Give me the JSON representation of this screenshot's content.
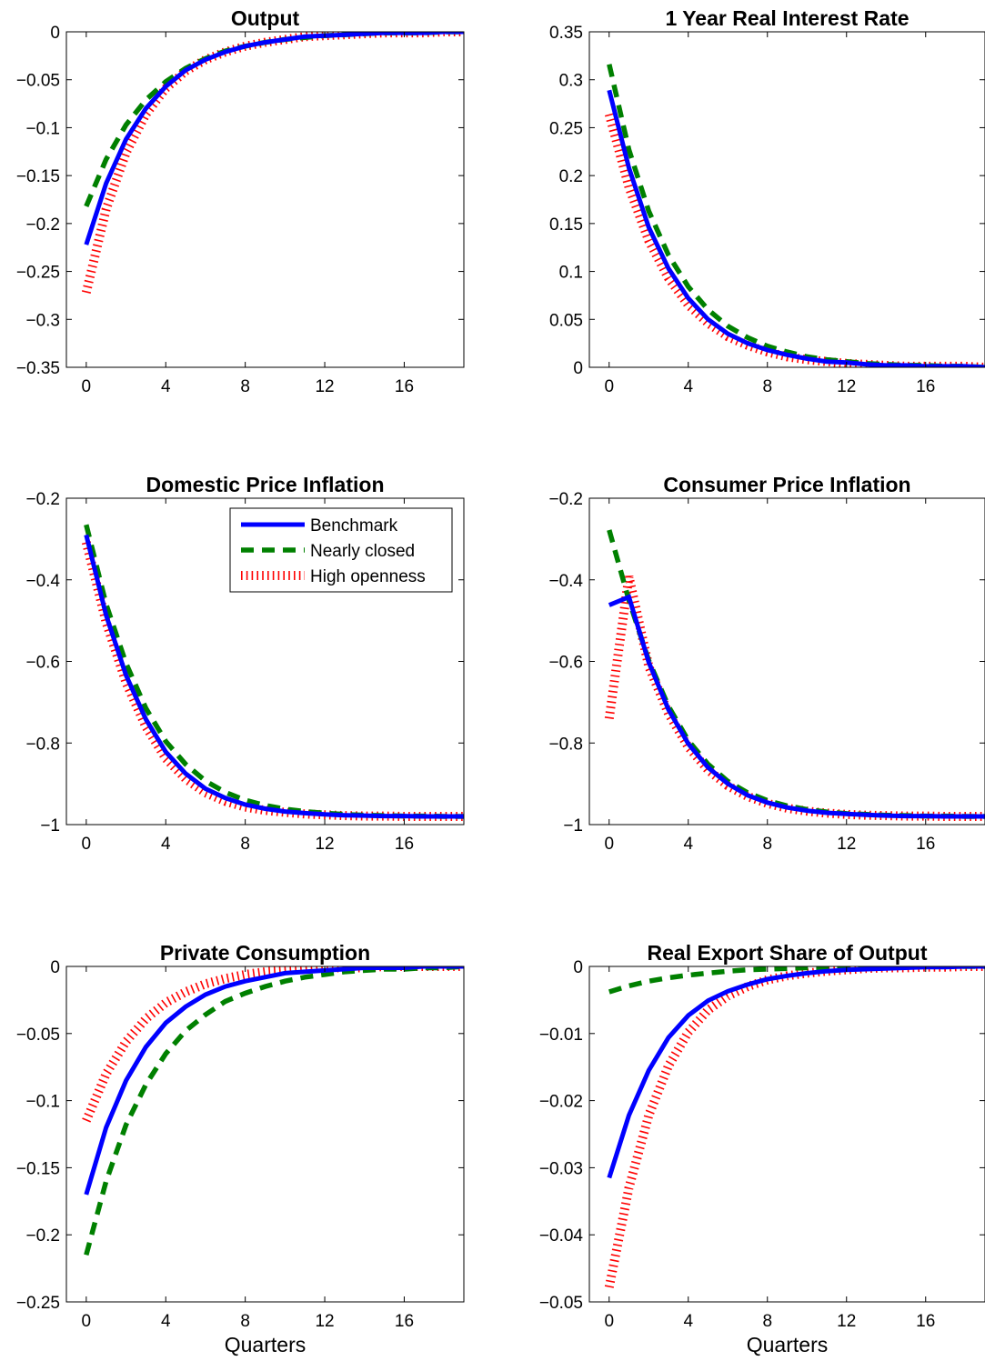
{
  "figure": {
    "legend": {
      "entries": [
        "Benchmark",
        "Nearly closed",
        "High openness"
      ],
      "placement": "upper-right of Domestic Price Inflation panel"
    },
    "series_styles": [
      {
        "name": "Benchmark",
        "color": "#0000ff",
        "line": "solid"
      },
      {
        "name": "Nearly closed",
        "color": "#008000",
        "line": "dashed"
      },
      {
        "name": "High openness",
        "color": "#ff0000",
        "line": "dotted"
      }
    ]
  },
  "chart_data": [
    {
      "type": "line",
      "title": "Output",
      "xlabel": "",
      "ylabel": "",
      "xlim": [
        -1,
        19
      ],
      "ylim": [
        -0.35,
        0
      ],
      "xticks": [
        0,
        4,
        8,
        12,
        16
      ],
      "yticks": [
        0,
        -0.05,
        -0.1,
        -0.15,
        -0.2,
        -0.25,
        -0.3,
        -0.35
      ],
      "ytick_labels": [
        "0",
        "−0.05",
        "−0.1",
        "−0.15",
        "−0.2",
        "−0.25",
        "−0.3",
        "−0.35"
      ],
      "x": [
        0,
        1,
        2,
        3,
        4,
        5,
        6,
        7,
        8,
        9,
        10,
        11,
        12,
        13,
        14,
        15,
        16,
        17,
        18,
        19
      ],
      "series": [
        {
          "name": "Benchmark",
          "values": [
            -0.222,
            -0.158,
            -0.112,
            -0.08,
            -0.057,
            -0.04,
            -0.029,
            -0.021,
            -0.015,
            -0.011,
            -0.008,
            -0.005,
            -0.004,
            -0.003,
            -0.002,
            -0.001,
            -0.001,
            -0.001,
            0,
            0
          ]
        },
        {
          "name": "Nearly closed",
          "values": [
            -0.182,
            -0.133,
            -0.097,
            -0.071,
            -0.052,
            -0.038,
            -0.028,
            -0.02,
            -0.015,
            -0.011,
            -0.008,
            -0.006,
            -0.004,
            -0.003,
            -0.002,
            -0.001,
            -0.001,
            -0.001,
            0,
            0
          ]
        },
        {
          "name": "High openness",
          "values": [
            -0.272,
            -0.185,
            -0.126,
            -0.086,
            -0.059,
            -0.041,
            -0.029,
            -0.021,
            -0.015,
            -0.011,
            -0.008,
            -0.005,
            -0.004,
            -0.003,
            -0.002,
            -0.001,
            -0.001,
            -0.001,
            0,
            0
          ]
        }
      ]
    },
    {
      "type": "line",
      "title": "1 Year Real Interest Rate",
      "xlabel": "",
      "ylabel": "",
      "xlim": [
        -1,
        19
      ],
      "ylim": [
        0,
        0.35
      ],
      "xticks": [
        0,
        4,
        8,
        12,
        16
      ],
      "yticks": [
        0.35,
        0.3,
        0.25,
        0.2,
        0.15,
        0.1,
        0.05,
        0
      ],
      "ytick_labels": [
        "0.35",
        "0.3",
        "0.25",
        "0.2",
        "0.15",
        "0.1",
        "0.05",
        "0"
      ],
      "x": [
        0,
        1,
        2,
        3,
        4,
        5,
        6,
        7,
        8,
        9,
        10,
        11,
        12,
        13,
        14,
        15,
        16,
        17,
        18,
        19
      ],
      "series": [
        {
          "name": "Benchmark",
          "values": [
            0.289,
            0.208,
            0.146,
            0.103,
            0.072,
            0.05,
            0.035,
            0.025,
            0.018,
            0.013,
            0.009,
            0.006,
            0.005,
            0.003,
            0.002,
            0.002,
            0.001,
            0.001,
            0.001,
            0
          ]
        },
        {
          "name": "Nearly closed",
          "values": [
            0.316,
            0.227,
            0.163,
            0.117,
            0.084,
            0.06,
            0.043,
            0.031,
            0.022,
            0.016,
            0.011,
            0.008,
            0.006,
            0.004,
            0.003,
            0.002,
            0.002,
            0.001,
            0.001,
            0
          ]
        },
        {
          "name": "High openness",
          "values": [
            0.264,
            0.188,
            0.132,
            0.093,
            0.065,
            0.046,
            0.032,
            0.023,
            0.016,
            0.011,
            0.008,
            0.006,
            0.004,
            0.003,
            0.002,
            0.001,
            0.001,
            0.001,
            0.001,
            0
          ]
        }
      ]
    },
    {
      "type": "line",
      "title": "Domestic Price Inflation",
      "xlabel": "",
      "ylabel": "",
      "xlim": [
        -1,
        19
      ],
      "ylim": [
        -1,
        -0.2
      ],
      "xticks": [
        0,
        4,
        8,
        12,
        16
      ],
      "yticks": [
        -0.2,
        -0.4,
        -0.6,
        -0.8,
        -1
      ],
      "ytick_labels": [
        "−0.2",
        "−0.4",
        "−0.6",
        "−0.8",
        "−1"
      ],
      "x": [
        0,
        1,
        2,
        3,
        4,
        5,
        6,
        7,
        8,
        9,
        10,
        11,
        12,
        13,
        14,
        15,
        16,
        17,
        18,
        19
      ],
      "series": [
        {
          "name": "Benchmark",
          "values": [
            -0.29,
            -0.487,
            -0.634,
            -0.742,
            -0.822,
            -0.875,
            -0.912,
            -0.935,
            -0.951,
            -0.961,
            -0.968,
            -0.972,
            -0.975,
            -0.977,
            -0.978,
            -0.979,
            -0.979,
            -0.98,
            -0.98,
            -0.98
          ]
        },
        {
          "name": "Nearly closed",
          "values": [
            -0.265,
            -0.46,
            -0.605,
            -0.715,
            -0.796,
            -0.852,
            -0.893,
            -0.921,
            -0.94,
            -0.953,
            -0.962,
            -0.968,
            -0.972,
            -0.975,
            -0.977,
            -0.978,
            -0.979,
            -0.979,
            -0.98,
            -0.98
          ]
        },
        {
          "name": "High openness",
          "values": [
            -0.308,
            -0.504,
            -0.652,
            -0.76,
            -0.838,
            -0.888,
            -0.922,
            -0.943,
            -0.957,
            -0.965,
            -0.97,
            -0.974,
            -0.976,
            -0.978,
            -0.979,
            -0.979,
            -0.98,
            -0.98,
            -0.98,
            -0.98
          ]
        }
      ]
    },
    {
      "type": "line",
      "title": "Consumer Price Inflation",
      "xlabel": "",
      "ylabel": "",
      "xlim": [
        -1,
        19
      ],
      "ylim": [
        -1,
        -0.2
      ],
      "xticks": [
        0,
        4,
        8,
        12,
        16
      ],
      "yticks": [
        -0.2,
        -0.4,
        -0.6,
        -0.8,
        -1
      ],
      "ytick_labels": [
        "−0.2",
        "−0.4",
        "−0.6",
        "−0.8",
        "−1"
      ],
      "x": [
        0,
        1,
        2,
        3,
        4,
        5,
        6,
        7,
        8,
        9,
        10,
        11,
        12,
        13,
        14,
        15,
        16,
        17,
        18,
        19
      ],
      "series": [
        {
          "name": "Benchmark",
          "values": [
            -0.462,
            -0.442,
            -0.602,
            -0.718,
            -0.802,
            -0.86,
            -0.9,
            -0.928,
            -0.946,
            -0.958,
            -0.966,
            -0.971,
            -0.974,
            -0.976,
            -0.978,
            -0.979,
            -0.979,
            -0.98,
            -0.98,
            -0.98
          ]
        },
        {
          "name": "Nearly closed",
          "values": [
            -0.278,
            -0.45,
            -0.598,
            -0.71,
            -0.794,
            -0.852,
            -0.894,
            -0.922,
            -0.941,
            -0.954,
            -0.963,
            -0.969,
            -0.973,
            -0.975,
            -0.977,
            -0.978,
            -0.979,
            -0.979,
            -0.98,
            -0.98
          ]
        },
        {
          "name": "High openness",
          "values": [
            -0.74,
            -0.392,
            -0.612,
            -0.728,
            -0.81,
            -0.866,
            -0.905,
            -0.931,
            -0.948,
            -0.96,
            -0.967,
            -0.972,
            -0.975,
            -0.977,
            -0.978,
            -0.979,
            -0.979,
            -0.98,
            -0.98,
            -0.98
          ]
        }
      ]
    },
    {
      "type": "line",
      "title": "Private Consumption",
      "xlabel": "Quarters",
      "ylabel": "",
      "xlim": [
        -1,
        19
      ],
      "ylim": [
        -0.25,
        0
      ],
      "xticks": [
        0,
        4,
        8,
        12,
        16
      ],
      "yticks": [
        0,
        -0.05,
        -0.1,
        -0.15,
        -0.2,
        -0.25
      ],
      "ytick_labels": [
        "0",
        "−0.05",
        "−0.1",
        "−0.15",
        "−0.2",
        "−0.25"
      ],
      "x": [
        0,
        1,
        2,
        3,
        4,
        5,
        6,
        7,
        8,
        9,
        10,
        11,
        12,
        13,
        14,
        15,
        16,
        17,
        18,
        19
      ],
      "series": [
        {
          "name": "Benchmark",
          "values": [
            -0.17,
            -0.12,
            -0.085,
            -0.06,
            -0.042,
            -0.03,
            -0.021,
            -0.015,
            -0.011,
            -0.008,
            -0.005,
            -0.004,
            -0.003,
            -0.002,
            -0.001,
            -0.001,
            -0.001,
            0,
            0,
            0
          ]
        },
        {
          "name": "Nearly closed",
          "values": [
            -0.215,
            -0.16,
            -0.118,
            -0.088,
            -0.065,
            -0.048,
            -0.036,
            -0.026,
            -0.02,
            -0.015,
            -0.011,
            -0.008,
            -0.006,
            -0.004,
            -0.003,
            -0.002,
            -0.002,
            -0.001,
            -0.001,
            0
          ]
        },
        {
          "name": "High openness",
          "values": [
            -0.115,
            -0.08,
            -0.056,
            -0.039,
            -0.027,
            -0.019,
            -0.013,
            -0.009,
            -0.006,
            -0.004,
            -0.003,
            -0.002,
            -0.001,
            -0.001,
            -0.001,
            0,
            0,
            0,
            0,
            0
          ]
        }
      ]
    },
    {
      "type": "line",
      "title": "Real Export Share of Output",
      "xlabel": "Quarters",
      "ylabel": "",
      "xlim": [
        -1,
        19
      ],
      "ylim": [
        -0.05,
        0
      ],
      "xticks": [
        0,
        4,
        8,
        12,
        16
      ],
      "yticks": [
        0,
        -0.01,
        -0.02,
        -0.03,
        -0.04,
        -0.05
      ],
      "ytick_labels": [
        "0",
        "−0.01",
        "−0.02",
        "−0.03",
        "−0.04",
        "−0.05"
      ],
      "x": [
        0,
        1,
        2,
        3,
        4,
        5,
        6,
        7,
        8,
        9,
        10,
        11,
        12,
        13,
        14,
        15,
        16,
        17,
        18,
        19
      ],
      "series": [
        {
          "name": "Benchmark",
          "values": [
            -0.0315,
            -0.0222,
            -0.0155,
            -0.0106,
            -0.0073,
            -0.0051,
            -0.0037,
            -0.0027,
            -0.0019,
            -0.0014,
            -0.001,
            -0.0007,
            -0.0005,
            -0.0004,
            -0.0003,
            -0.0002,
            -0.0001,
            -0.0001,
            0,
            0
          ]
        },
        {
          "name": "Nearly closed",
          "values": [
            -0.0038,
            -0.0029,
            -0.0022,
            -0.0017,
            -0.0013,
            -0.001,
            -0.0007,
            -0.0005,
            -0.0004,
            -0.0003,
            -0.0002,
            -0.0002,
            -0.0001,
            -0.0001,
            -0.0001,
            0,
            0,
            0,
            0,
            0
          ]
        },
        {
          "name": "High openness",
          "values": [
            -0.0478,
            -0.033,
            -0.0222,
            -0.0148,
            -0.0098,
            -0.0065,
            -0.0044,
            -0.003,
            -0.002,
            -0.0014,
            -0.001,
            -0.0007,
            -0.0005,
            -0.0003,
            -0.0002,
            -0.0002,
            -0.0001,
            -0.0001,
            0,
            0
          ]
        }
      ]
    }
  ]
}
